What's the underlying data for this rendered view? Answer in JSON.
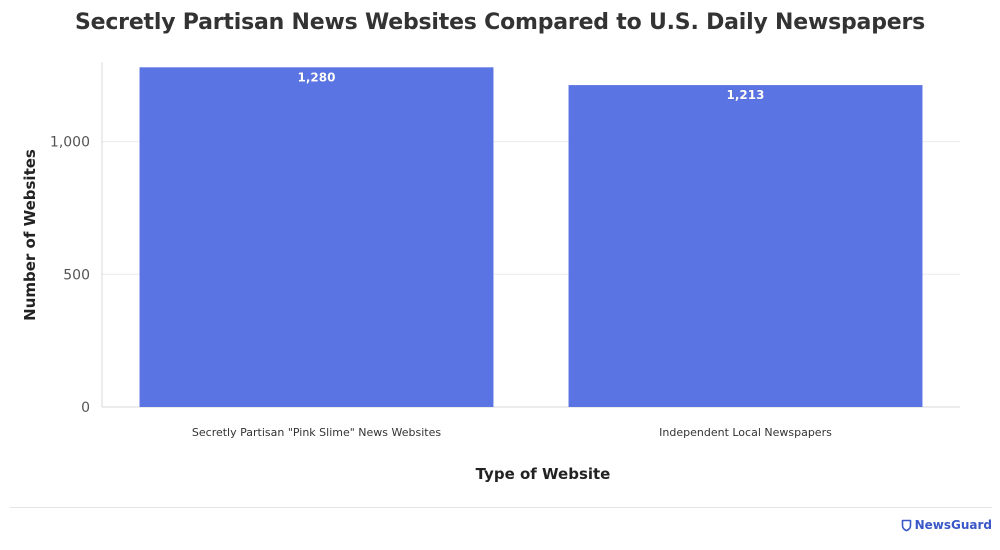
{
  "chart_data": {
    "type": "bar",
    "title": "Secretly Partisan News Websites Compared to U.S. Daily Newspapers",
    "xlabel": "Type of Website",
    "ylabel": "Number of Websites",
    "categories": [
      "Secretly Partisan \"Pink Slime\" News Websites",
      "Independent Local Newspapers"
    ],
    "values": [
      1280,
      1213
    ],
    "data_labels": [
      "1,280",
      "1,213"
    ],
    "yticks": [
      0,
      500,
      1000
    ],
    "ytick_labels": [
      "0",
      "500",
      "1,000"
    ],
    "ylim": [
      0,
      1300
    ],
    "grid": true,
    "legend": "none",
    "bar_color": "#5a75e3",
    "label_color": "#ffffff"
  },
  "brand": {
    "name": "NewsGuard",
    "icon": "shield-icon",
    "color": "#3a57c7"
  }
}
